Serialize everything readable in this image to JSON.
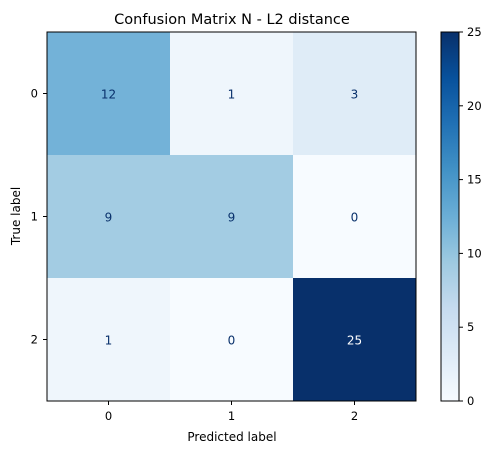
{
  "chart_data": {
    "type": "heatmap",
    "title": "Confusion Matrix N - L2 distance",
    "xlabel": "Predicted label",
    "ylabel": "True label",
    "x_categories": [
      "0",
      "1",
      "2"
    ],
    "y_categories": [
      "0",
      "1",
      "2"
    ],
    "matrix": [
      [
        12,
        1,
        3
      ],
      [
        9,
        9,
        0
      ],
      [
        1,
        0,
        25
      ]
    ],
    "colormap": "Blues",
    "colorbar": {
      "range": [
        0,
        25
      ],
      "ticks": [
        "0",
        "5",
        "10",
        "15",
        "20",
        "25"
      ]
    },
    "grid": false
  }
}
